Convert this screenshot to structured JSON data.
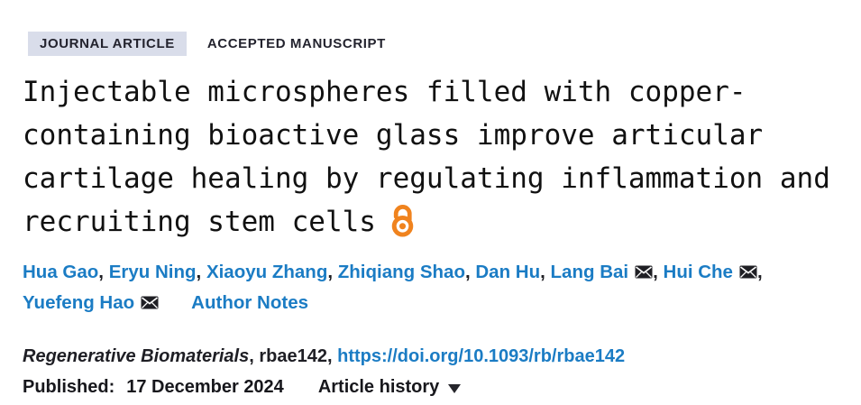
{
  "badges": {
    "journal_article": "JOURNAL ARTICLE",
    "accepted_manuscript": "ACCEPTED MANUSCRIPT"
  },
  "title": {
    "full": "Injectable microspheres filled with copper-containing bioactive glass improve articular cartilage healing by regulating inflammation and recruiting stem cells",
    "lines": [
      "Injectable microspheres filled with copper-",
      "containing bioactive glass improve articular",
      "cartilage healing by regulating inflammation and",
      "recruiting stem cells"
    ]
  },
  "icons": {
    "open_access": "open-access-lock-icon",
    "email": "envelope-icon",
    "article_history": "caret-down-icon"
  },
  "authors": {
    "list": [
      {
        "name": "Hua Gao",
        "email_icon": false
      },
      {
        "name": "Eryu Ning",
        "email_icon": false
      },
      {
        "name": "Xiaoyu Zhang",
        "email_icon": false
      },
      {
        "name": "Zhiqiang Shao",
        "email_icon": false
      },
      {
        "name": "Dan Hu",
        "email_icon": false
      },
      {
        "name": "Lang Bai",
        "email_icon": true
      },
      {
        "name": "Hui Che",
        "email_icon": true
      },
      {
        "name": "Yuefeng Hao",
        "email_icon": true,
        "break_before": true
      }
    ],
    "separator": ", ",
    "author_notes_label": "Author Notes"
  },
  "citation": {
    "journal": "Regenerative Biomaterials",
    "separator": ", ",
    "article_id": "rbae142",
    "doi_link": "https://doi.org/10.1093/rb/rbae142"
  },
  "published": {
    "label": "Published:",
    "date": "17 December 2024",
    "article_history_label": "Article history"
  },
  "colors": {
    "link_blue": "#1b7cc4",
    "badge_bg": "#d9ddea",
    "open_access_orange": "#f0831e",
    "text_dark": "#1f1f24"
  }
}
